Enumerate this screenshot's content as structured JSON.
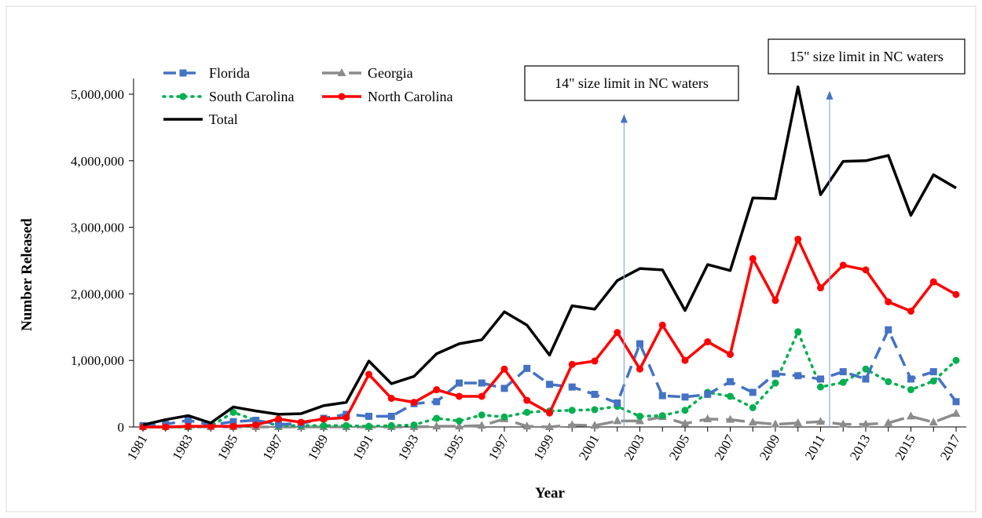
{
  "chart_data": {
    "type": "line",
    "title": "",
    "xlabel": "Year",
    "ylabel": "Number Released",
    "ylim": [
      0,
      5500000
    ],
    "yticks": [
      0,
      1000000,
      2000000,
      3000000,
      4000000,
      5000000
    ],
    "ytick_labels": [
      "0",
      "1,000,000",
      "2,000,000",
      "3,000,000",
      "4,000,000",
      "5,000,000"
    ],
    "xlim": [
      1981,
      2017
    ],
    "xtick_labels": [
      "1981",
      "1983",
      "1985",
      "1987",
      "1989",
      "1991",
      "1993",
      "1995",
      "1997",
      "1999",
      "2001",
      "2003",
      "2005",
      "2007",
      "2009",
      "2011",
      "2013",
      "2015",
      "2017"
    ],
    "x": [
      1981,
      1982,
      1983,
      1984,
      1985,
      1986,
      1987,
      1988,
      1989,
      1990,
      1991,
      1992,
      1993,
      1994,
      1995,
      1996,
      1997,
      1998,
      1999,
      2000,
      2001,
      2002,
      2003,
      2004,
      2005,
      2006,
      2007,
      2008,
      2009,
      2010,
      2011,
      2012,
      2013,
      2014,
      2015,
      2016,
      2017
    ],
    "grid": false,
    "legend_position": "top-left",
    "series": [
      {
        "name": "Florida",
        "color": "#4472C4",
        "style": "dashed",
        "marker": "square",
        "values": [
          20000,
          40000,
          100000,
          30000,
          80000,
          100000,
          40000,
          50000,
          130000,
          190000,
          160000,
          160000,
          350000,
          380000,
          660000,
          660000,
          580000,
          880000,
          640000,
          600000,
          490000,
          360000,
          1250000,
          470000,
          450000,
          490000,
          680000,
          520000,
          800000,
          770000,
          720000,
          830000,
          720000,
          1460000,
          720000,
          830000,
          380000
        ]
      },
      {
        "name": "Georgia",
        "color": "#8C8C8C",
        "style": "long-dash",
        "marker": "triangle",
        "values": [
          0,
          0,
          0,
          0,
          0,
          0,
          0,
          0,
          0,
          0,
          0,
          0,
          0,
          10000,
          10000,
          20000,
          120000,
          10000,
          0,
          30000,
          20000,
          90000,
          90000,
          150000,
          50000,
          120000,
          110000,
          70000,
          40000,
          60000,
          80000,
          40000,
          40000,
          60000,
          160000,
          70000,
          200000
        ]
      },
      {
        "name": "South Carolina",
        "color": "#00B050",
        "style": "dotted",
        "marker": "circle",
        "values": [
          0,
          0,
          0,
          10000,
          220000,
          100000,
          20000,
          20000,
          20000,
          20000,
          10000,
          20000,
          30000,
          130000,
          90000,
          180000,
          150000,
          220000,
          240000,
          250000,
          260000,
          310000,
          160000,
          170000,
          250000,
          520000,
          460000,
          290000,
          660000,
          1430000,
          600000,
          670000,
          870000,
          680000,
          560000,
          690000,
          1000000
        ]
      },
      {
        "name": "North Carolina",
        "color": "#FF0000",
        "style": "solid",
        "marker": "circle",
        "values": [
          0,
          0,
          10000,
          10000,
          10000,
          30000,
          120000,
          70000,
          120000,
          140000,
          790000,
          430000,
          370000,
          560000,
          460000,
          460000,
          870000,
          400000,
          210000,
          940000,
          990000,
          1420000,
          870000,
          1530000,
          1000000,
          1280000,
          1090000,
          2530000,
          1900000,
          2820000,
          2090000,
          2430000,
          2360000,
          1880000,
          1740000,
          2180000,
          1990000
        ]
      },
      {
        "name": "Total",
        "color": "#000000",
        "style": "solid",
        "marker": "none",
        "values": [
          30000,
          110000,
          170000,
          60000,
          300000,
          240000,
          190000,
          200000,
          320000,
          370000,
          990000,
          650000,
          760000,
          1100000,
          1250000,
          1310000,
          1730000,
          1530000,
          1080000,
          1820000,
          1770000,
          2200000,
          2380000,
          2360000,
          1750000,
          2440000,
          2350000,
          3440000,
          3430000,
          5110000,
          3490000,
          3990000,
          4000000,
          4080000,
          3180000,
          3790000,
          3590000
        ]
      }
    ],
    "annotations": [
      {
        "text": "14\" size limit in NC waters",
        "x": 2002.3,
        "arrow_tip": 4700000
      },
      {
        "text": "15\" size limit in NC waters",
        "x": 2011.4,
        "arrow_tip": 5050000
      }
    ]
  }
}
